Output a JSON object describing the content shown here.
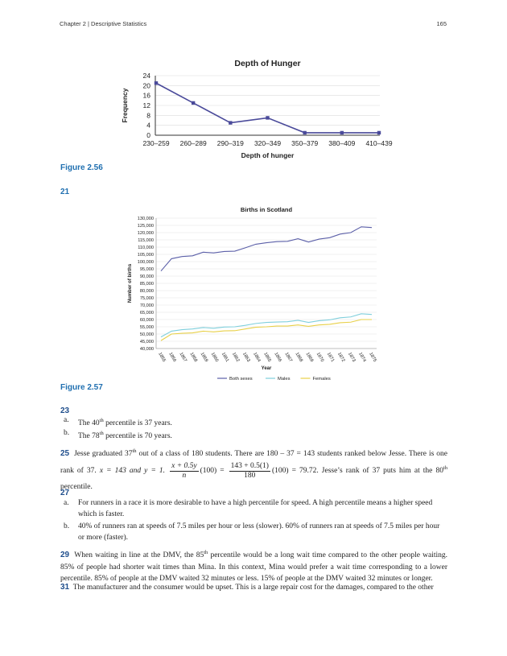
{
  "header": {
    "chapter": "Chapter 2 | Descriptive Statistics",
    "page": "165"
  },
  "figure_256": {
    "label": "Figure 2.56"
  },
  "figure_257": {
    "label": "Figure 2.57"
  },
  "chart_data": [
    {
      "type": "line",
      "title": "Depth of Hunger",
      "xlabel": "Depth of hunger",
      "ylabel": "Frequency",
      "categories": [
        "230–259",
        "260–289",
        "290–319",
        "320–349",
        "350–379",
        "380–409",
        "410–439"
      ],
      "values": [
        21,
        13,
        5,
        7,
        1,
        1,
        1
      ],
      "yticks": [
        "0",
        "4",
        "8",
        "12",
        "16",
        "20",
        "24"
      ],
      "ylim": [
        0,
        24
      ],
      "grid": true,
      "color": "#4a4a9a"
    },
    {
      "type": "line",
      "title": "Births in Scotland",
      "xlabel": "Year",
      "ylabel": "Number of births",
      "categories": [
        "1855",
        "1856",
        "1857",
        "1858",
        "1859",
        "1860",
        "1861",
        "1862",
        "1863",
        "1864",
        "1865",
        "1866",
        "1867",
        "1868",
        "1869",
        "1870",
        "1871",
        "1872",
        "1873",
        "1874",
        "1875"
      ],
      "yticks": [
        "40,000",
        "45,000",
        "50,000",
        "55,000",
        "60,000",
        "65,000",
        "70,000",
        "75,000",
        "80,000",
        "85,000",
        "90,000",
        "95,000",
        "100,000",
        "105,000",
        "110,000",
        "115,000",
        "120,000",
        "125,000",
        "130,000"
      ],
      "ylim": [
        40000,
        130000
      ],
      "grid": true,
      "legend_position": "bottom",
      "series": [
        {
          "name": "Both sexes",
          "color": "#5b5fa8",
          "values": [
            93500,
            102000,
            103500,
            104000,
            106500,
            106000,
            107000,
            107200,
            109500,
            112000,
            113000,
            113800,
            114000,
            115800,
            113500,
            115500,
            116500,
            119000,
            120000,
            124000,
            123500
          ]
        },
        {
          "name": "Males",
          "color": "#7fcfdc",
          "values": [
            48000,
            52000,
            53000,
            53500,
            54500,
            54000,
            54800,
            55000,
            56000,
            57300,
            58000,
            58300,
            58500,
            59500,
            58000,
            59200,
            59800,
            61200,
            61800,
            64000,
            63500
          ]
        },
        {
          "name": "Females",
          "color": "#e8d048",
          "values": [
            45500,
            50000,
            50500,
            50800,
            52000,
            51500,
            52200,
            52300,
            53500,
            54700,
            55000,
            55500,
            55500,
            56300,
            55300,
            56300,
            56700,
            57800,
            58200,
            60000,
            60000
          ]
        }
      ]
    }
  ],
  "q21": {
    "num": "21"
  },
  "q23": {
    "num": "23",
    "a": {
      "marker": "a.",
      "pre": "The 40",
      "sup": "th",
      "post": " percentile is 37 years."
    },
    "b": {
      "marker": "b.",
      "pre": "The 78",
      "sup": "th",
      "post": " percentile is 70 years."
    }
  },
  "q25": {
    "num": "25",
    "t1": "Jesse graduated 37",
    "sup1": "th",
    "t2": " out of a class of 180 students. There are 180 – 37 = 143 students ranked below Jesse. There is one rank of 37. ",
    "x_eq": "x = 143 and y = 1. ",
    "frac1_num": "x + 0.5y",
    "frac1_den": "n",
    "mid": "(100) = ",
    "frac2_num": "143 + 0.5(1)",
    "frac2_den": "180",
    "t3": "(100) = 79.72. Jesse’s rank of 37 puts him at the 80",
    "sup2": "th",
    "t4": " percentile."
  },
  "q27": {
    "num": "27",
    "a": {
      "marker": "a.",
      "text": "For runners in a race it is more desirable to have a high percentile for speed. A high percentile means a higher speed which is faster."
    },
    "b": {
      "marker": "b.",
      "text": "40% of runners ran at speeds of 7.5 miles per hour or less (slower). 60% of runners ran at speeds of 7.5 miles per hour or more (faster)."
    }
  },
  "q29": {
    "num": "29",
    "t1": "When waiting in line at the DMV, the 85",
    "sup": "th",
    "t2": " percentile would be a long wait time compared to the other people waiting. 85% of people had shorter wait times than Mina. In this context, Mina would prefer a wait time corresponding to a lower percentile. 85% of people at the DMV waited 32 minutes or less. 15% of people at the DMV waited 32 minutes or longer."
  },
  "q31": {
    "num": "31",
    "text": "The manufacturer and the consumer would be upset. This is a large repair cost for the damages, compared to the other"
  }
}
